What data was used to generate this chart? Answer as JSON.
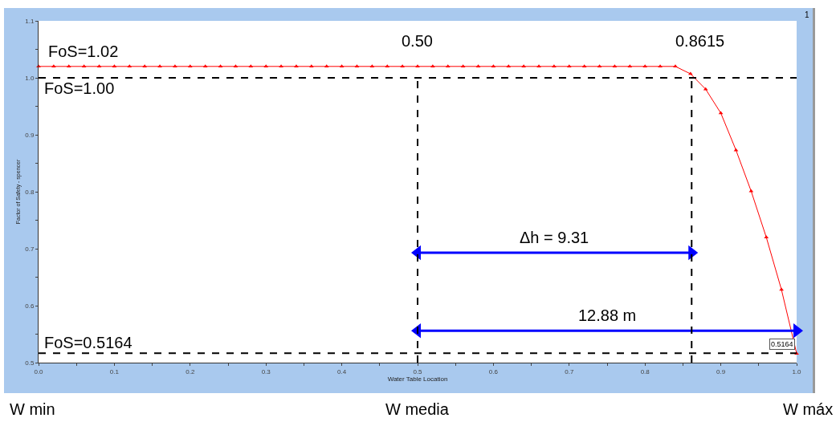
{
  "chart_data": {
    "type": "line",
    "xlabel": "Water Table Location",
    "ylabel": "Factor of Safety - spencer",
    "xlim": [
      0,
      1
    ],
    "ylim": [
      0.5,
      1.1
    ],
    "xticks": [
      {
        "value": 0,
        "label": "0.0"
      },
      {
        "value": 0.05,
        "label": null
      },
      0.1,
      {
        "value": 0.15,
        "label": null
      },
      0.2,
      {
        "value": 0.25,
        "label": null
      },
      0.3,
      {
        "value": 0.35,
        "label": null
      },
      0.4,
      {
        "value": 0.45,
        "label": null
      },
      0.5,
      {
        "value": 0.55,
        "label": null
      },
      0.6,
      {
        "value": 0.65,
        "label": null
      },
      0.7,
      {
        "value": 0.75,
        "label": null
      },
      0.8,
      {
        "value": 0.85,
        "label": null
      },
      0.9,
      {
        "value": 0.95,
        "label": null
      },
      {
        "value": 1,
        "label": "1.0"
      }
    ],
    "yticks": [
      0.5,
      {
        "value": 0.55,
        "label": null
      },
      0.6,
      {
        "value": 0.65,
        "label": null
      },
      0.7,
      {
        "value": 0.75,
        "label": null
      },
      0.8,
      {
        "value": 0.85,
        "label": null
      },
      0.9,
      {
        "value": 0.95,
        "label": null
      },
      {
        "value": 1,
        "label": "1.0"
      },
      {
        "value": 1.05,
        "label": null
      },
      1.1
    ],
    "grid": false,
    "line_style": "solid",
    "series": [
      {
        "color": "#ff0000",
        "marker": "triangle",
        "x": [
          0,
          0.02,
          0.04,
          0.06,
          0.08,
          0.1,
          0.12,
          0.14,
          0.16,
          0.18,
          0.2,
          0.22,
          0.24,
          0.26,
          0.28,
          0.3,
          0.32,
          0.34,
          0.36,
          0.38,
          0.4,
          0.42,
          0.44,
          0.46,
          0.48,
          0.5,
          0.52,
          0.54,
          0.56,
          0.58,
          0.6,
          0.62,
          0.64,
          0.66,
          0.68,
          0.7,
          0.72,
          0.74,
          0.76,
          0.78,
          0.8,
          0.82,
          0.84,
          0.86,
          0.88,
          0.9,
          0.92,
          0.94,
          0.96,
          0.98,
          1
        ],
        "values": [
          1.02,
          1.02,
          1.02,
          1.02,
          1.02,
          1.02,
          1.02,
          1.02,
          1.02,
          1.02,
          1.02,
          1.02,
          1.02,
          1.02,
          1.02,
          1.02,
          1.02,
          1.02,
          1.02,
          1.02,
          1.02,
          1.02,
          1.02,
          1.02,
          1.02,
          1.02,
          1.02,
          1.02,
          1.02,
          1.02,
          1.02,
          1.02,
          1.02,
          1.02,
          1.02,
          1.02,
          1.02,
          1.02,
          1.02,
          1.02,
          1.02,
          1.02,
          1.02,
          1.007,
          0.98,
          0.938,
          0.873,
          0.801,
          0.72,
          0.628,
          0.516
        ]
      },
      {
        "color": "#0000ff",
        "marker": "triangle",
        "x": [
          0.5,
          0.8615
        ],
        "values": [
          0.693,
          0.693
        ]
      },
      {
        "color": "#0000ff",
        "marker": "triangle",
        "x": [
          0.5,
          1
        ],
        "values": [
          0.556,
          0.556
        ]
      }
    ],
    "ref_lines": [
      {
        "axis": "y",
        "value": 1,
        "label": "FoS=1.00",
        "color": "#000000",
        "line_style": "dashed"
      },
      {
        "axis": "y",
        "value": 0.5164,
        "label": "FoS=0.5164",
        "color": "#000000",
        "line_style": "dashed"
      },
      {
        "axis": "x",
        "value": 0.5,
        "label": "0.50",
        "color": "#000000",
        "line_style": "dashed"
      },
      {
        "axis": "x",
        "value": 0.8615,
        "label": "0.8615",
        "color": "#000000",
        "line_style": "dashed"
      }
    ],
    "annotations": [
      {
        "text": "FoS=1.02",
        "x": 0,
        "y": 1.02
      },
      {
        "text": "Δh = 9.31",
        "x": 0.68,
        "y": 0.693
      },
      {
        "text": "12.88 m",
        "x": 0.75,
        "y": 0.556
      },
      {
        "text": "0.5164",
        "x": 1,
        "y": 0.5164
      },
      "1",
      "W min",
      "W media",
      "W máx"
    ]
  }
}
